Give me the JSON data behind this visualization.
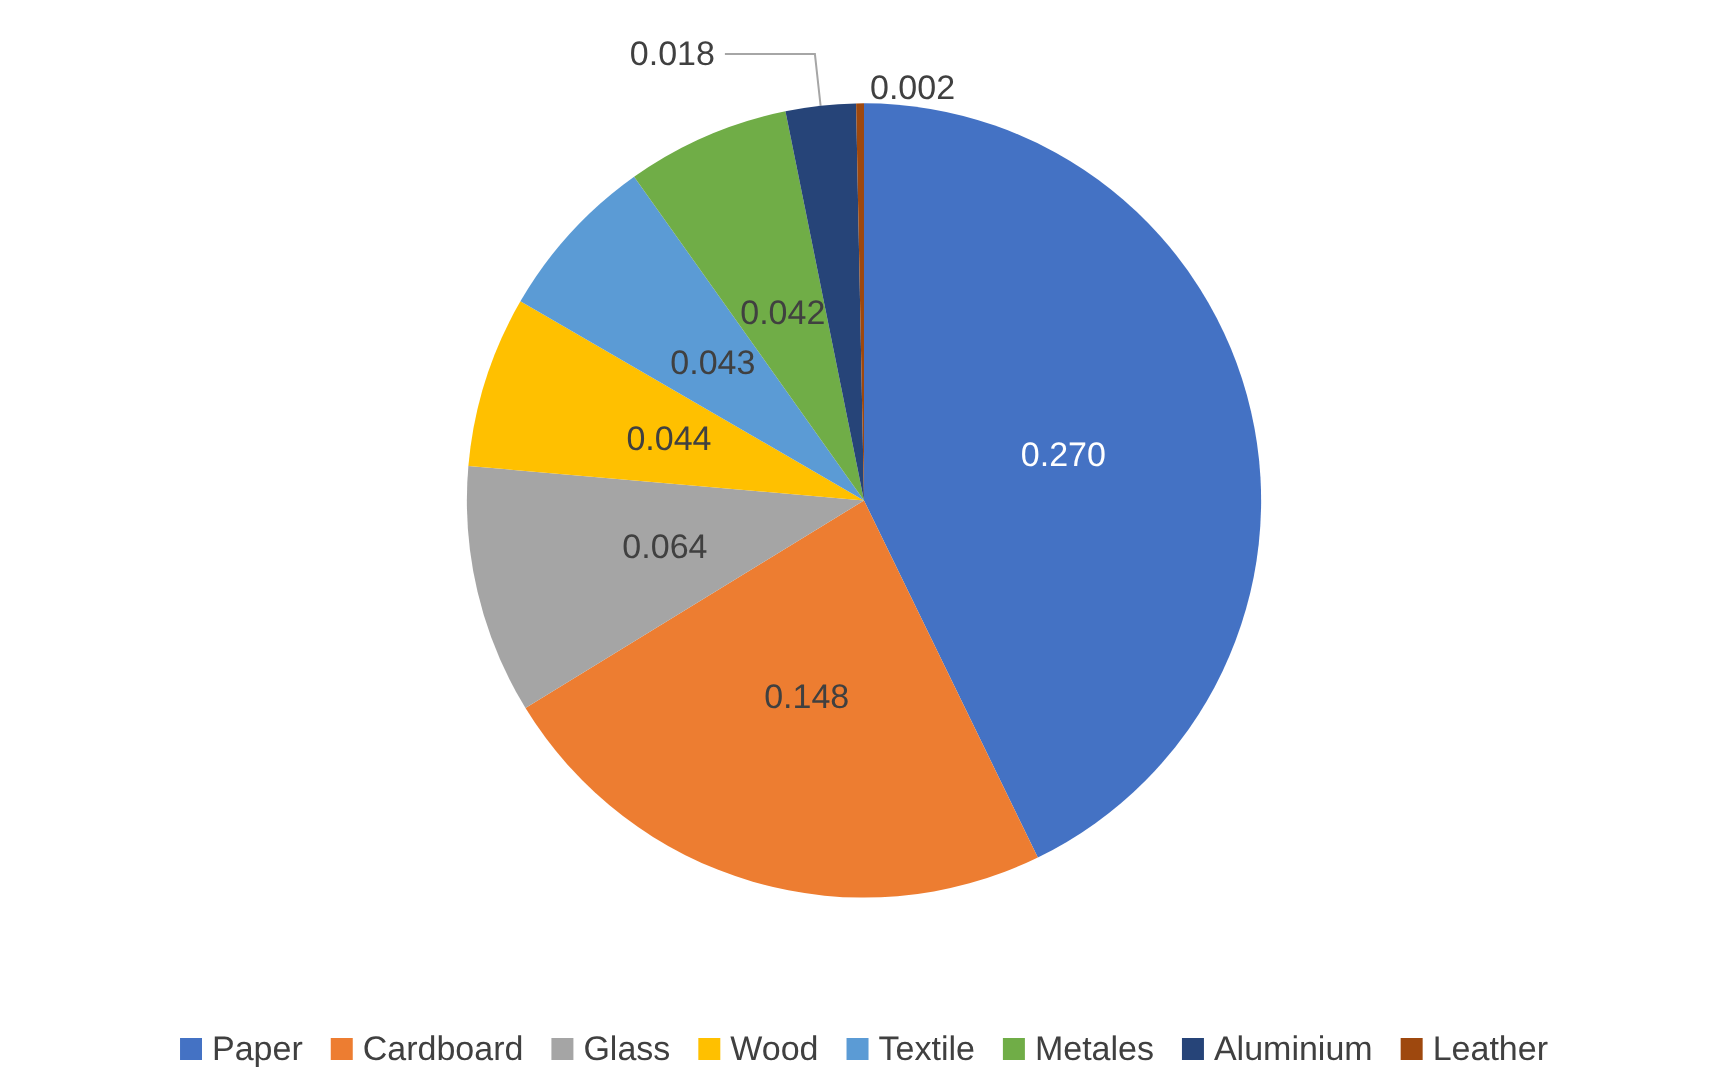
{
  "chart_data": {
    "type": "pie",
    "categories": [
      "Paper",
      "Cardboard",
      "Glass",
      "Wood",
      "Textile",
      "Metales",
      "Aluminium",
      "Leather"
    ],
    "values": [
      0.27,
      0.148,
      0.064,
      0.044,
      0.043,
      0.042,
      0.018,
      0.002
    ],
    "value_labels": [
      "0.270",
      "0.148",
      "0.064",
      "0.044",
      "0.043",
      "0.042",
      "0.018",
      "0.002"
    ],
    "colors": [
      "#4472c4",
      "#ed7d31",
      "#a5a5a5",
      "#ffc000",
      "#5b9bd5",
      "#70ad47",
      "#264478",
      "#9e480e"
    ],
    "legend": "bottom"
  }
}
